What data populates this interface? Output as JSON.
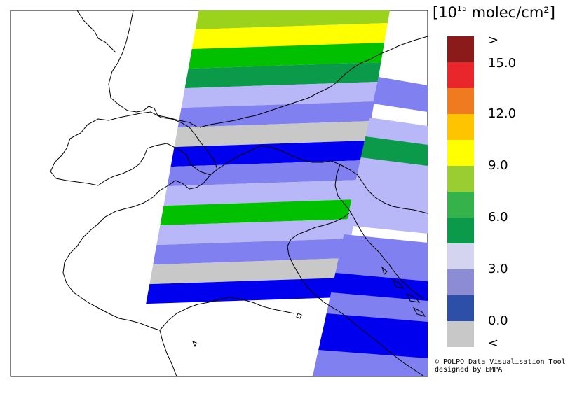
{
  "legend": {
    "unit_prefix": "[10",
    "unit_exponent": "15",
    "unit_suffix": " molec/cm²]",
    "labels": [
      ">",
      "15.0",
      "12.0",
      "9.0",
      "6.0",
      "3.0",
      "0.0",
      "<"
    ],
    "bins": [
      {
        "label": ">",
        "color": "#8b1a1a"
      },
      {
        "label": "",
        "color": "#e8262c"
      },
      {
        "label": "",
        "color": "#f07a20"
      },
      {
        "label": "",
        "color": "#ffc400"
      },
      {
        "label": "",
        "color": "#ffff00"
      },
      {
        "label": "",
        "color": "#9acd32"
      },
      {
        "label": "",
        "color": "#35b34a"
      },
      {
        "label": "",
        "color": "#0a9a4a"
      },
      {
        "label": "",
        "color": "#d4d4f0"
      },
      {
        "label": "",
        "color": "#8c8cd4"
      },
      {
        "label": "",
        "color": "#2e4fa8"
      },
      {
        "label": "<",
        "color": "#c8c8c8"
      }
    ]
  },
  "swath_rows": [
    {
      "value": "yellowgreen",
      "color": "#9bd21c"
    },
    {
      "value": "yellow",
      "color": "#ffff00"
    },
    {
      "value": "green",
      "color": "#00c000"
    },
    {
      "value": "darkgreen",
      "color": "#0a9a4a"
    },
    {
      "value": "lavender",
      "color": "#b8b8f8"
    },
    {
      "value": "midblue",
      "color": "#8080f0"
    },
    {
      "value": "gray",
      "color": "#c8c8c8"
    },
    {
      "value": "blue",
      "color": "#0000ee"
    },
    {
      "value": "midblue",
      "color": "#8080f0"
    },
    {
      "value": "lavender",
      "color": "#b8b8f8"
    },
    {
      "value": "green",
      "color": "#00c000"
    },
    {
      "value": "lavender",
      "color": "#b8b8f8"
    },
    {
      "value": "midblue",
      "color": "#8080f0"
    },
    {
      "value": "gray",
      "color": "#c8c8c8"
    },
    {
      "value": "blue",
      "color": "#0000ee"
    }
  ],
  "credit": {
    "line1": "© POLPO Data Visualisation Tool",
    "line2": "designed by EMPA"
  }
}
